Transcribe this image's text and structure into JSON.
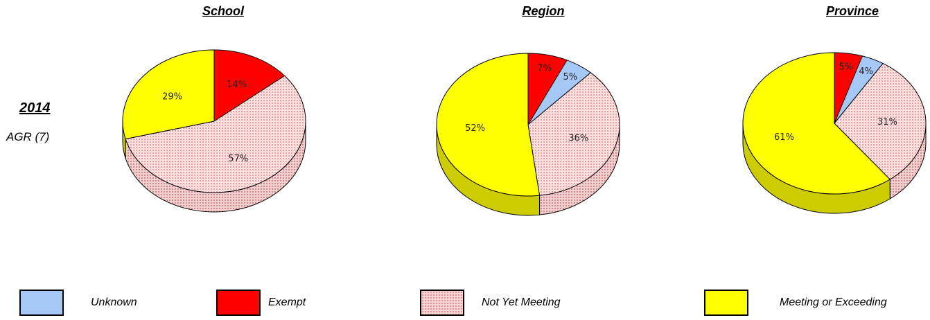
{
  "row": {
    "year": "2014",
    "subtitle": "AGR (7)"
  },
  "colors": {
    "unknown": "#a6c8f7",
    "exempt": "#ff0000",
    "not_yet_meeting": "#f9d5d5",
    "meeting": "#ffff00"
  },
  "legend": [
    {
      "key": "unknown",
      "label": "Unknown"
    },
    {
      "key": "exempt",
      "label": "Exempt"
    },
    {
      "key": "not_yet_meeting",
      "label": "Not Yet Meeting"
    },
    {
      "key": "meeting",
      "label": "Meeting or Exceeding"
    }
  ],
  "chart_data": [
    {
      "type": "pie",
      "title": "School",
      "categories": [
        "Unknown",
        "Exempt",
        "Not Yet Meeting",
        "Meeting or Exceeding"
      ],
      "values": [
        0,
        14,
        57,
        29
      ],
      "labels": [
        "",
        "14%",
        "57%",
        "29%"
      ]
    },
    {
      "type": "pie",
      "title": "Region",
      "categories": [
        "Unknown",
        "Exempt",
        "Not Yet Meeting",
        "Meeting or Exceeding"
      ],
      "values": [
        5,
        7,
        36,
        52
      ],
      "labels": [
        "5%",
        "7%",
        "36%",
        "52%"
      ]
    },
    {
      "type": "pie",
      "title": "Province",
      "categories": [
        "Unknown",
        "Exempt",
        "Not Yet Meeting",
        "Meeting or Exceeding"
      ],
      "values": [
        4,
        5,
        31,
        61
      ],
      "labels": [
        "4%",
        "5%",
        "31%",
        "61%"
      ]
    }
  ]
}
